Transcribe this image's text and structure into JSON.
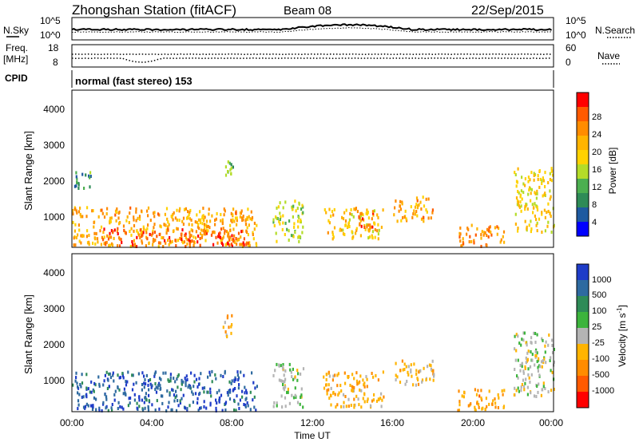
{
  "header": {
    "station": "Zhongshan Station (fitACF)",
    "beam": "Beam 08",
    "date": "22/Sep/2015"
  },
  "top_panels": {
    "nsky_label": "N.Sky",
    "nsearch_label": "N.Search",
    "freq_label_1": "Freq.",
    "freq_label_2": "[MHz]",
    "nave_label": "Nave",
    "cpid_label": "CPID",
    "cpid_value": "normal (fast stereo) 153",
    "left_ticks_1": [
      "10^5",
      "10^0"
    ],
    "right_ticks_1": [
      "10^5",
      "10^0"
    ],
    "left_ticks_2": [
      "18",
      "8"
    ],
    "right_ticks_2": [
      "60",
      "0"
    ]
  },
  "axes": {
    "ylabel": "Slant Range [km]",
    "xlabel": "Time UT",
    "yticks": [
      "4000",
      "3000",
      "2000",
      "1000"
    ],
    "xticks": [
      "00:00",
      "04:00",
      "08:00",
      "12:00",
      "16:00",
      "20:00",
      "00:00"
    ]
  },
  "colorbars": {
    "power": {
      "label": "Power [dB]",
      "ticks": [
        "28",
        "24",
        "20",
        "16",
        "12",
        "8",
        "4"
      ],
      "colors": [
        "#ff0000",
        "#ff5a00",
        "#ff8c00",
        "#ffb400",
        "#ffd200",
        "#b4dc28",
        "#4caf50",
        "#2e8b57",
        "#1e5aa0",
        "#0000ff"
      ]
    },
    "velocity": {
      "label": "Velocity [m s",
      "label_sup": "-1",
      "label_end": "]",
      "ticks": [
        "1000",
        "500",
        "100",
        "25",
        "-25",
        "-100",
        "-500",
        "-1000"
      ],
      "colors": [
        "#1e3cc8",
        "#2e6aa0",
        "#2e8b57",
        "#3cb43c",
        "#b4b4b4",
        "#ffb400",
        "#ff8c00",
        "#ff5a00",
        "#ff0000"
      ]
    }
  },
  "chart_data": [
    {
      "type": "heatmap",
      "title": "Power",
      "x_range": [
        "00:00",
        "24:00"
      ],
      "ylim": [
        180,
        4600
      ],
      "ylabel": "Slant Range [km]",
      "xlabel": "Time UT",
      "colorbar_range_db": [
        0,
        32
      ],
      "regions": [
        {
          "t_start": 0.0,
          "t_end": 9.2,
          "r_min": 200,
          "r_max": 1300,
          "value": 22
        },
        {
          "t_start": 1.5,
          "t_end": 8.8,
          "r_min": 200,
          "r_max": 700,
          "value": 28
        },
        {
          "t_start": 0.0,
          "t_end": 1.0,
          "r_min": 1800,
          "r_max": 2300,
          "value": 8
        },
        {
          "t_start": 7.5,
          "t_end": 8.0,
          "r_min": 2200,
          "r_max": 2900,
          "value": 12
        },
        {
          "t_start": 10.0,
          "t_end": 11.5,
          "r_min": 300,
          "r_max": 1500,
          "value": 14
        },
        {
          "t_start": 12.5,
          "t_end": 15.5,
          "r_min": 400,
          "r_max": 1300,
          "value": 20
        },
        {
          "t_start": 14.2,
          "t_end": 15.0,
          "r_min": 700,
          "r_max": 1200,
          "value": 28
        },
        {
          "t_start": 16.0,
          "t_end": 18.0,
          "r_min": 900,
          "r_max": 1600,
          "value": 22
        },
        {
          "t_start": 19.2,
          "t_end": 21.5,
          "r_min": 200,
          "r_max": 800,
          "value": 24
        },
        {
          "t_start": 22.0,
          "t_end": 24.0,
          "r_min": 600,
          "r_max": 2400,
          "value": 18
        }
      ]
    },
    {
      "type": "heatmap",
      "title": "Velocity",
      "x_range": [
        "00:00",
        "24:00"
      ],
      "ylim": [
        180,
        4600
      ],
      "ylabel": "Slant Range [km]",
      "xlabel": "Time UT",
      "colorbar_range_ms": [
        -1000,
        1000
      ],
      "regions": [
        {
          "t_start": 0.0,
          "t_end": 9.2,
          "r_min": 200,
          "r_max": 1300,
          "value": 800
        },
        {
          "t_start": 7.5,
          "t_end": 8.0,
          "r_min": 2200,
          "r_max": 2900,
          "value": -300
        },
        {
          "t_start": 10.0,
          "t_end": 11.5,
          "r_min": 300,
          "r_max": 1500,
          "value": 50
        },
        {
          "t_start": 12.5,
          "t_end": 15.5,
          "r_min": 300,
          "r_max": 1300,
          "value": -300
        },
        {
          "t_start": 16.0,
          "t_end": 18.0,
          "r_min": 900,
          "r_max": 1600,
          "value": -200
        },
        {
          "t_start": 19.2,
          "t_end": 21.5,
          "r_min": 200,
          "r_max": 800,
          "value": -400
        },
        {
          "t_start": 22.0,
          "t_end": 24.0,
          "r_min": 600,
          "r_max": 2400,
          "value": 10
        }
      ]
    }
  ]
}
